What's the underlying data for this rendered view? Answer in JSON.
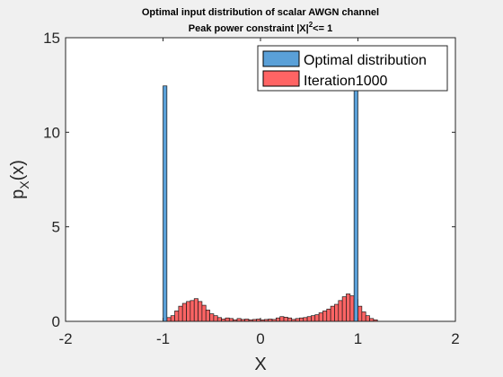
{
  "chart_data": {
    "type": "bar",
    "title_line1": "Optimal input distribution of scalar AWGN channel",
    "title_line2_prefix": "Peak power constraint |X|",
    "title_line2_sup": "2",
    "title_line2_suffix": "<= 1",
    "xlabel": "X",
    "ylabel_main": "p",
    "ylabel_sub": "X",
    "ylabel_suffix": "(x)",
    "xlim": [
      -2,
      2
    ],
    "ylim": [
      0,
      15
    ],
    "xticks": [
      -2,
      -1,
      0,
      1,
      2
    ],
    "yticks": [
      0,
      5,
      10,
      15
    ],
    "grid": false,
    "legend_position": "top-right",
    "series": [
      {
        "name": "Optimal distribution",
        "color": "#5aa0d8",
        "bar_width": 0.04,
        "points": [
          {
            "x": -0.98,
            "y": 12.45
          },
          {
            "x": 0.98,
            "y": 12.45
          }
        ]
      },
      {
        "name": "Iteration1000",
        "color": "#ff6464",
        "bar_width": 0.04,
        "points": [
          {
            "x": -0.98,
            "y": 0.15
          },
          {
            "x": -0.94,
            "y": 0.2
          },
          {
            "x": -0.9,
            "y": 0.3
          },
          {
            "x": -0.86,
            "y": 0.55
          },
          {
            "x": -0.82,
            "y": 0.8
          },
          {
            "x": -0.78,
            "y": 0.95
          },
          {
            "x": -0.74,
            "y": 1.05
          },
          {
            "x": -0.7,
            "y": 1.1
          },
          {
            "x": -0.66,
            "y": 1.2
          },
          {
            "x": -0.62,
            "y": 1.05
          },
          {
            "x": -0.58,
            "y": 0.85
          },
          {
            "x": -0.54,
            "y": 0.6
          },
          {
            "x": -0.5,
            "y": 0.4
          },
          {
            "x": -0.46,
            "y": 0.3
          },
          {
            "x": -0.42,
            "y": 0.2
          },
          {
            "x": -0.38,
            "y": 0.12
          },
          {
            "x": -0.34,
            "y": 0.18
          },
          {
            "x": -0.3,
            "y": 0.15
          },
          {
            "x": -0.26,
            "y": 0.08
          },
          {
            "x": -0.22,
            "y": 0.15
          },
          {
            "x": -0.18,
            "y": 0.1
          },
          {
            "x": -0.14,
            "y": 0.12
          },
          {
            "x": -0.1,
            "y": 0.08
          },
          {
            "x": -0.06,
            "y": 0.1
          },
          {
            "x": -0.02,
            "y": 0.12
          },
          {
            "x": 0.02,
            "y": 0.08
          },
          {
            "x": 0.06,
            "y": 0.1
          },
          {
            "x": 0.1,
            "y": 0.12
          },
          {
            "x": 0.14,
            "y": 0.1
          },
          {
            "x": 0.18,
            "y": 0.18
          },
          {
            "x": 0.22,
            "y": 0.25
          },
          {
            "x": 0.26,
            "y": 0.22
          },
          {
            "x": 0.3,
            "y": 0.18
          },
          {
            "x": 0.34,
            "y": 0.1
          },
          {
            "x": 0.38,
            "y": 0.15
          },
          {
            "x": 0.42,
            "y": 0.18
          },
          {
            "x": 0.46,
            "y": 0.2
          },
          {
            "x": 0.5,
            "y": 0.25
          },
          {
            "x": 0.54,
            "y": 0.3
          },
          {
            "x": 0.58,
            "y": 0.35
          },
          {
            "x": 0.62,
            "y": 0.45
          },
          {
            "x": 0.66,
            "y": 0.55
          },
          {
            "x": 0.7,
            "y": 0.65
          },
          {
            "x": 0.74,
            "y": 0.8
          },
          {
            "x": 0.78,
            "y": 0.9
          },
          {
            "x": 0.82,
            "y": 1.1
          },
          {
            "x": 0.86,
            "y": 1.3
          },
          {
            "x": 0.9,
            "y": 1.45
          },
          {
            "x": 0.94,
            "y": 1.35
          },
          {
            "x": 0.98,
            "y": 1.15
          },
          {
            "x": 1.02,
            "y": 0.8
          },
          {
            "x": 1.06,
            "y": 0.5
          },
          {
            "x": 1.1,
            "y": 0.3
          },
          {
            "x": 1.14,
            "y": 0.15
          },
          {
            "x": 1.18,
            "y": 0.08
          }
        ]
      }
    ]
  }
}
